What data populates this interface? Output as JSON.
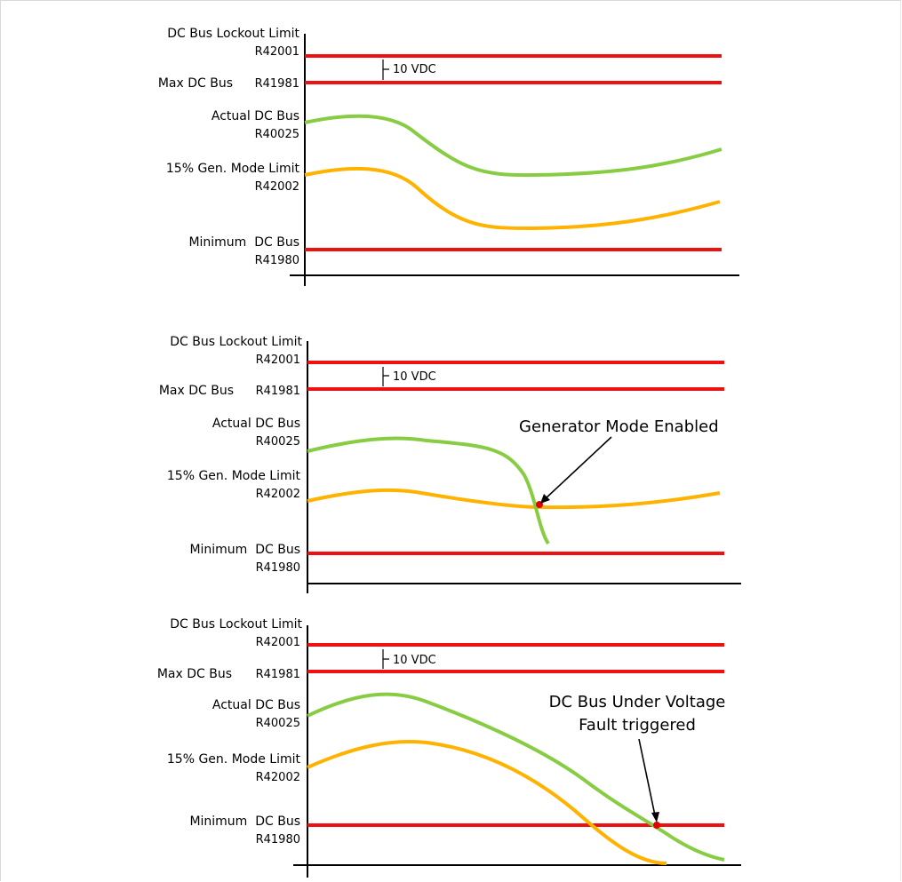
{
  "colors": {
    "limit_line": "#ee1111",
    "actual_curve": "#88cc44",
    "gen_limit_curve": "#ffb300",
    "axis": "#000000",
    "marker": "#e60000"
  },
  "labels": {
    "lockout": "DC Bus Lockout Limit",
    "lockout_reg": "R42001",
    "max_bus": "Max DC Bus",
    "max_reg": "R41981",
    "actual": "Actual DC Bus",
    "actual_reg": "R40025",
    "gen_limit": "15% Gen. Mode Limit",
    "gen_limit_reg": "R42002",
    "min_bus": "Minimum  DC Bus",
    "min_reg": "R41980",
    "gap": "10 VDC"
  },
  "panels": [
    {
      "annotation_lines": []
    },
    {
      "annotation_lines": [
        "Generator Mode Enabled"
      ]
    },
    {
      "annotation_lines": [
        "DC Bus Under Voltage",
        "Fault triggered"
      ]
    }
  ]
}
